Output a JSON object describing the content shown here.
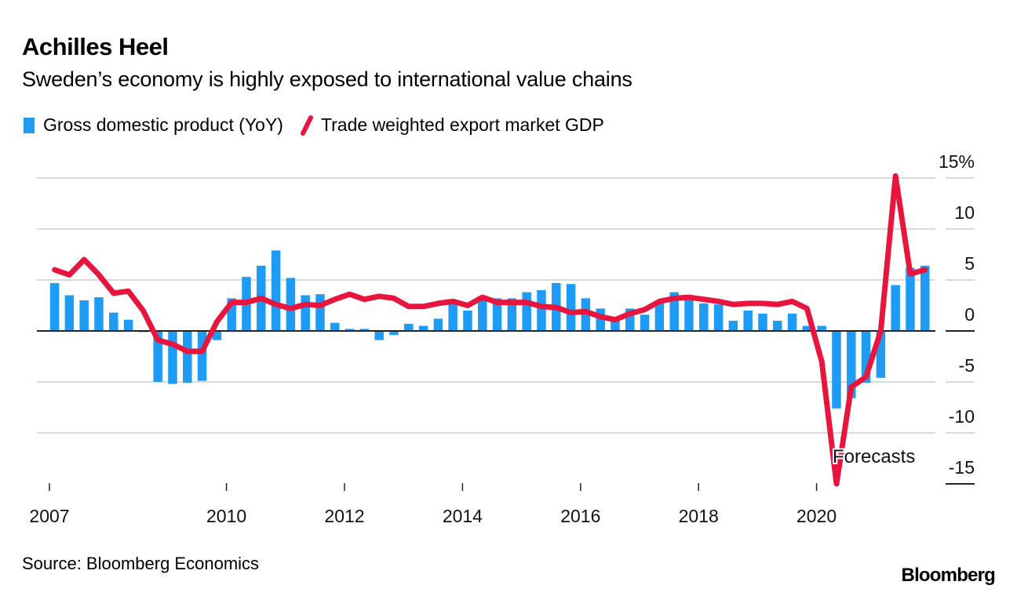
{
  "header": {
    "title": "Achilles Heel",
    "subtitle": "Sweden’s economy is highly exposed to international value chains"
  },
  "legend": [
    {
      "label": "Gross domestic product (YoY)",
      "type": "bar",
      "color": "#1e9cf5"
    },
    {
      "label": "Trade weighted export market GDP",
      "type": "line",
      "color": "#e8163f"
    }
  ],
  "footer": {
    "source": "Source: Bloomberg Economics",
    "brand": "Bloomberg"
  },
  "chart_data": {
    "type": "bar+line",
    "title": "Achilles Heel",
    "subtitle": "Sweden’s economy is highly exposed to international value chains",
    "xlabel": "",
    "ylabel": "%",
    "ylim": [
      -15,
      15
    ],
    "yticks": [
      15,
      10,
      5,
      0,
      -5,
      -10,
      -15
    ],
    "ytick_labels": [
      "15%",
      "10",
      "5",
      "0",
      "-5",
      "-10",
      "-15"
    ],
    "y_axis_position": "right",
    "grid": true,
    "legend_position": "top-left",
    "x_start": 2007.0,
    "x_end": 2022.0,
    "xticks": [
      2007,
      2010,
      2012,
      2014,
      2016,
      2018,
      2020
    ],
    "xtick_labels": [
      "2007",
      "2010",
      "2012",
      "2014",
      "2016",
      "2018",
      "2020"
    ],
    "x_quarters": [
      "2007Q1",
      "2007Q2",
      "2007Q3",
      "2007Q4",
      "2008Q1",
      "2008Q2",
      "2008Q3",
      "2008Q4",
      "2009Q1",
      "2009Q2",
      "2009Q3",
      "2009Q4",
      "2010Q1",
      "2010Q2",
      "2010Q3",
      "2010Q4",
      "2011Q1",
      "2011Q2",
      "2011Q3",
      "2011Q4",
      "2012Q1",
      "2012Q2",
      "2012Q3",
      "2012Q4",
      "2013Q1",
      "2013Q2",
      "2013Q3",
      "2013Q4",
      "2014Q1",
      "2014Q2",
      "2014Q3",
      "2014Q4",
      "2015Q1",
      "2015Q2",
      "2015Q3",
      "2015Q4",
      "2016Q1",
      "2016Q2",
      "2016Q3",
      "2016Q4",
      "2017Q1",
      "2017Q2",
      "2017Q3",
      "2017Q4",
      "2018Q1",
      "2018Q2",
      "2018Q3",
      "2018Q4",
      "2019Q1",
      "2019Q2",
      "2019Q3",
      "2019Q4",
      "2020Q1",
      "2020Q2",
      "2020Q3",
      "2020Q4",
      "2021Q1",
      "2021Q2",
      "2021Q3",
      "2021Q4"
    ],
    "series": [
      {
        "name": "Gross domestic product (YoY)",
        "type": "bar",
        "color": "#1e9cf5",
        "values": [
          4.7,
          3.5,
          3.0,
          3.3,
          1.8,
          1.1,
          -0.1,
          -5.0,
          -5.2,
          -5.1,
          -4.9,
          -0.9,
          3.2,
          5.3,
          6.4,
          7.9,
          5.2,
          3.5,
          3.6,
          0.8,
          0.2,
          0.2,
          -0.9,
          -0.4,
          0.7,
          0.5,
          1.2,
          2.7,
          2.0,
          3.2,
          3.2,
          3.2,
          3.8,
          4.0,
          4.7,
          4.6,
          3.2,
          2.2,
          1.2,
          2.2,
          1.6,
          2.9,
          3.8,
          3.2,
          2.7,
          2.6,
          1.0,
          2.0,
          1.7,
          1.0,
          1.7,
          0.5,
          0.5,
          -7.6,
          -6.6,
          -5.1,
          -4.6,
          4.5,
          6.2,
          6.4
        ]
      },
      {
        "name": "Trade weighted export market GDP",
        "type": "line",
        "color": "#e8163f",
        "values": [
          6.0,
          5.5,
          7.0,
          5.5,
          3.7,
          3.9,
          2.0,
          -0.9,
          -1.3,
          -2.0,
          -2.0,
          0.9,
          2.8,
          2.8,
          3.2,
          2.6,
          2.2,
          2.6,
          2.5,
          3.1,
          3.6,
          3.1,
          3.4,
          3.2,
          2.4,
          2.4,
          2.7,
          2.9,
          2.5,
          3.3,
          2.8,
          2.8,
          2.8,
          2.4,
          2.3,
          1.8,
          1.9,
          1.4,
          1.1,
          1.7,
          2.1,
          2.9,
          3.2,
          3.3,
          3.1,
          2.9,
          2.6,
          2.7,
          2.7,
          2.6,
          2.9,
          2.2,
          -3.0,
          -15.0,
          -5.5,
          -4.5,
          0.0,
          15.2,
          5.6,
          6.0
        ]
      }
    ],
    "annotations": [
      {
        "text": "Forecasts",
        "x": "2020Q2",
        "y": -12.4
      }
    ]
  }
}
